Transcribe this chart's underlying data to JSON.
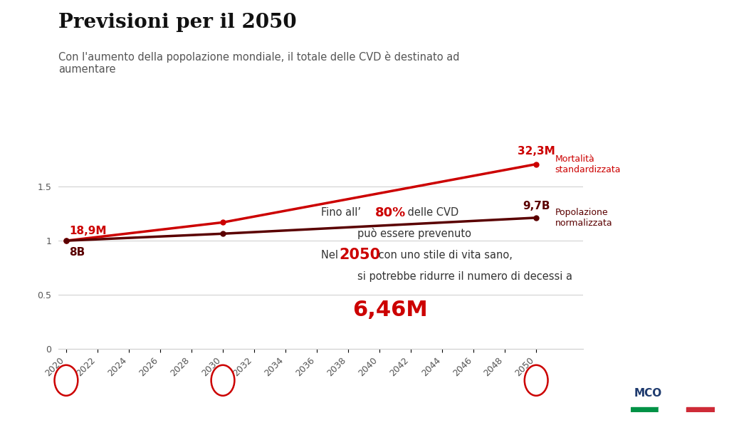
{
  "title": "Previsioni per il 2050",
  "subtitle": "Con l'aumento della popolazione mondiale, il totale delle CVD è destinato ad\naumentare",
  "background_color": "#ffffff",
  "line1": {
    "name": "Mortalità standardizzata",
    "color": "#cc0000",
    "x": [
      2020,
      2030,
      2050
    ],
    "y": [
      1.0,
      1.17,
      1.71
    ],
    "start_label": "18,9M",
    "end_label": "32,3M",
    "end_label_name": "Mortalità\nstandardizzata"
  },
  "line2": {
    "name": "Popolazione normalizzata",
    "color": "#5a0000",
    "x": [
      2020,
      2030,
      2050
    ],
    "y": [
      1.0,
      1.065,
      1.213
    ],
    "start_label": "8B",
    "end_label": "9,7B",
    "end_label_name": "Popolazione\nnormalizzata"
  },
  "circled_years": [
    2020,
    2030,
    2050
  ],
  "circle_color": "#cc0000",
  "yticks": [
    0,
    0.5,
    1.0,
    1.5
  ],
  "xticks": [
    2020,
    2022,
    2024,
    2026,
    2028,
    2030,
    2032,
    2034,
    2036,
    2038,
    2040,
    2042,
    2044,
    2046,
    2048,
    2050
  ],
  "xlim": [
    2019.5,
    2053
  ],
  "ylim": [
    0,
    2.05
  ],
  "red_color": "#cc0000",
  "dark_red_color": "#5a0000",
  "text_color": "#333333",
  "grid_color": "#cccccc"
}
